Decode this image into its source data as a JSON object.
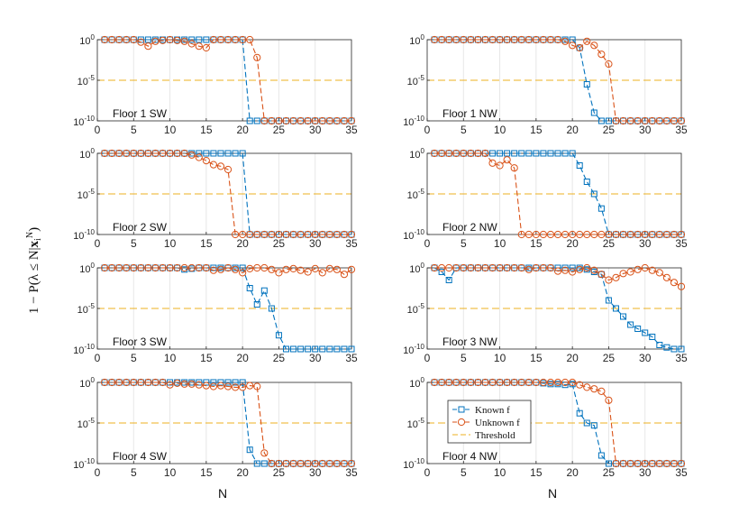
{
  "colors": {
    "known": "#0072BD",
    "unknown": "#D95319",
    "threshold": "#EDB120",
    "grid": "#e6e6e6",
    "axis": "#262626"
  },
  "chart_data": {
    "type": "line",
    "ylabel": "1 − P(λ ≤ N|x_i^N)",
    "xlabel": "N",
    "xlim": [
      0,
      35
    ],
    "xticks": [
      "0",
      "5",
      "10",
      "15",
      "20",
      "25",
      "30",
      "35"
    ],
    "ylim_exp": [
      -10,
      0
    ],
    "yticks": [
      {
        "base": "10",
        "exp": "0",
        "v": 0
      },
      {
        "base": "10",
        "exp": "-5",
        "v": -5
      },
      {
        "base": "10",
        "exp": "-10",
        "v": -10
      }
    ],
    "threshold_exp": -5,
    "legend": {
      "known": "Known f",
      "unknown": "Unknown f",
      "threshold": "Threshold"
    },
    "panels": [
      {
        "title": "Floor 1 SW",
        "known_log10": [
          0,
          0,
          0,
          0,
          0,
          0,
          0,
          0,
          0,
          0,
          0,
          0,
          0,
          0,
          0,
          0,
          0,
          0,
          0,
          0,
          -10,
          -10,
          -10,
          -10,
          -10,
          -10,
          -10,
          -10,
          -10,
          -10,
          -10,
          -10,
          -10,
          -10,
          -10
        ],
        "unknown_log10": [
          0,
          0,
          0,
          0,
          0,
          -0.3,
          -0.8,
          -0.2,
          -0.1,
          0,
          -0.1,
          -0.2,
          -0.5,
          -0.8,
          -1.0,
          0,
          0,
          0,
          0,
          0,
          0,
          -2.2,
          -10,
          -10,
          -10,
          -10,
          -10,
          -10,
          -10,
          -10,
          -10,
          -10,
          -10,
          -10,
          -10
        ]
      },
      {
        "title": "Floor 1 NW",
        "known_log10": [
          0,
          0,
          0,
          0,
          0,
          0,
          0,
          0,
          0,
          0,
          0,
          0,
          0,
          0,
          0,
          0,
          0,
          0,
          0,
          0,
          -1,
          -5.5,
          -9,
          -10,
          -10,
          -10,
          -10,
          -10,
          -10,
          -10,
          -10,
          -10,
          -10,
          -10,
          -10
        ],
        "unknown_log10": [
          0,
          0,
          0,
          0,
          0,
          0,
          0,
          0,
          0,
          0,
          0,
          0,
          0,
          0,
          0,
          0,
          0,
          0,
          -0.2,
          -0.7,
          -1.0,
          -0.2,
          -0.7,
          -1.8,
          -3.0,
          -10,
          -10,
          -10,
          -10,
          -10,
          -10,
          -10,
          -10,
          -10,
          -10
        ]
      },
      {
        "title": "Floor 2 SW",
        "known_log10": [
          0,
          0,
          0,
          0,
          0,
          0,
          0,
          0,
          0,
          0,
          0,
          0,
          0,
          0,
          0,
          0,
          0,
          0,
          0,
          0,
          -10,
          -10,
          -10,
          -10,
          -10,
          -10,
          -10,
          -10,
          -10,
          -10,
          -10,
          -10,
          -10,
          -10,
          -10
        ],
        "unknown_log10": [
          0,
          0,
          0,
          0,
          0,
          0,
          0,
          0,
          0,
          0,
          0,
          0,
          -0.2,
          -0.5,
          -0.9,
          -1.4,
          -1.6,
          -2.0,
          -10,
          -10,
          -10,
          -10,
          -10,
          -10,
          -10,
          -10,
          -10,
          -10,
          -10,
          -10,
          -10,
          -10,
          -10,
          -10,
          -10
        ]
      },
      {
        "title": "Floor 2 NW",
        "known_log10": [
          0,
          0,
          0,
          0,
          0,
          0,
          0,
          0,
          0,
          0,
          0,
          0,
          0,
          0,
          0,
          0,
          0,
          0,
          0,
          0,
          -1.5,
          -3.5,
          -5,
          -6.8,
          -10,
          -10,
          -10,
          -10,
          -10,
          -10,
          -10,
          -10,
          -10,
          -10,
          -10
        ],
        "unknown_log10": [
          0,
          0,
          0,
          0,
          0,
          0,
          0,
          0,
          -1.2,
          -1.5,
          -0.8,
          -1.8,
          -10,
          -10,
          -10,
          -10,
          -10,
          -10,
          -10,
          -10,
          -10,
          -10,
          -10,
          -10,
          -10,
          -10,
          -10,
          -10,
          -10,
          -10,
          -10,
          -10,
          -10,
          -10,
          -10
        ]
      },
      {
        "title": "Floor 3 SW",
        "known_log10": [
          0,
          0,
          0,
          0,
          0,
          0,
          0,
          0,
          0,
          0,
          0,
          -0.2,
          -0.1,
          0,
          0,
          0,
          0,
          0,
          0,
          0,
          -2.5,
          -4.5,
          -2.8,
          -5,
          -8.3,
          -10,
          -10,
          -10,
          -10,
          -10,
          -10,
          -10,
          -10,
          -10,
          -10
        ],
        "unknown_log10": [
          0,
          0,
          0,
          0,
          0,
          0,
          0,
          0,
          0,
          0,
          0,
          0,
          0,
          0,
          0,
          -0.3,
          -0.2,
          0,
          -0.2,
          -0.6,
          -0.1,
          0,
          0,
          -0.2,
          -0.6,
          -0.2,
          -0.1,
          -0.3,
          -0.5,
          -0.1,
          -0.6,
          -0.1,
          -0.2,
          -0.8,
          -0.2
        ]
      },
      {
        "title": "Floor 3 NW",
        "known_log10": [
          0,
          -0.5,
          -1.5,
          0,
          0,
          0,
          0,
          0,
          0,
          0,
          0,
          0,
          0,
          0,
          0,
          0,
          0,
          0,
          0,
          0,
          0,
          -0.2,
          -0.5,
          -0.8,
          -4,
          -5,
          -6,
          -7,
          -7.5,
          -8,
          -8.5,
          -9.5,
          -9.8,
          -10,
          -10
        ],
        "unknown_log10": [
          0,
          0,
          0,
          0,
          0,
          0,
          0,
          0,
          0,
          0,
          0,
          0,
          0,
          -0.2,
          0,
          0,
          0,
          -0.4,
          -0.3,
          -0.5,
          -0.2,
          0,
          -0.3,
          -0.8,
          -1.5,
          -1.2,
          -0.7,
          -0.5,
          -0.2,
          0,
          -0.3,
          -0.6,
          -1.2,
          -1.8,
          -2.3
        ]
      },
      {
        "title": "Floor 4 SW",
        "known_log10": [
          0,
          0,
          0,
          0,
          0,
          0,
          0,
          0,
          0,
          0,
          0,
          0,
          0,
          0,
          0,
          0,
          0,
          0,
          0,
          0,
          -8.3,
          -10,
          -10,
          -10,
          -10,
          -10,
          -10,
          -10,
          -10,
          -10,
          -10,
          -10,
          -10,
          -10,
          -10
        ],
        "unknown_log10": [
          0,
          0,
          0,
          0,
          0,
          0,
          0,
          0,
          0,
          -0.3,
          -0.1,
          -0.2,
          -0.2,
          -0.3,
          -0.4,
          -0.5,
          -0.4,
          -0.5,
          -0.6,
          -0.6,
          -0.4,
          -0.5,
          -8.7,
          -10,
          -10,
          -10,
          -10,
          -10,
          -10,
          -10,
          -10,
          -10,
          -10,
          -10,
          -10
        ]
      },
      {
        "title": "Floor 4 NW",
        "known_log10": [
          0,
          0,
          0,
          0,
          0,
          0,
          0,
          0,
          0,
          0,
          0,
          0,
          0,
          0,
          0,
          -0.1,
          -0.2,
          -0.2,
          -0.3,
          -0.2,
          -3.8,
          -5,
          -5.3,
          -9,
          -10,
          -10,
          -10,
          -10,
          -10,
          -10,
          -10,
          -10,
          -10,
          -10,
          -10
        ],
        "unknown_log10": [
          0,
          0,
          0,
          0,
          0,
          0,
          0,
          0,
          0,
          0,
          0,
          0,
          0,
          0,
          0,
          0,
          0,
          0,
          0,
          0,
          -0.3,
          -0.6,
          -0.8,
          -1.1,
          -2.2,
          -10,
          -10,
          -10,
          -10,
          -10,
          -10,
          -10,
          -10,
          -10,
          -10
        ]
      }
    ]
  }
}
